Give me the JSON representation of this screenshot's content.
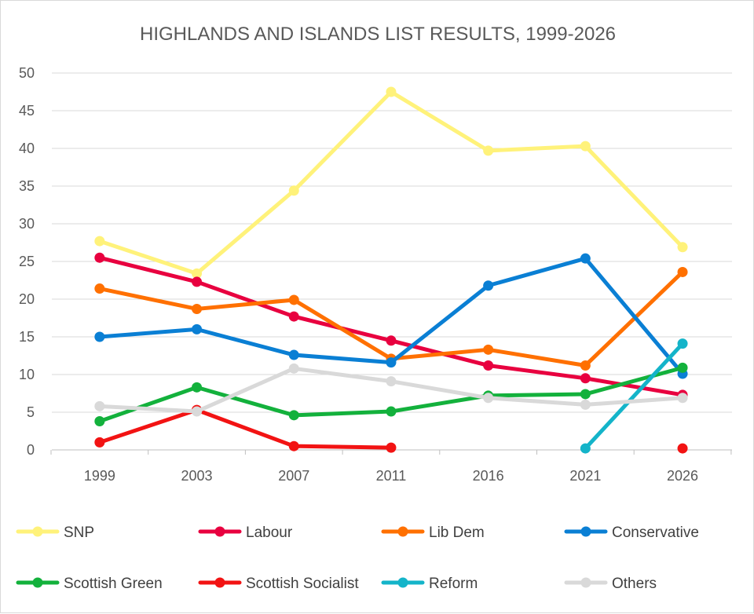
{
  "chart_data": {
    "type": "line",
    "title": "HIGHLANDS AND ISLANDS LIST RESULTS, 1999-2026",
    "xlabel": "",
    "ylabel": "",
    "categories": [
      "1999",
      "2003",
      "2007",
      "2011",
      "2016",
      "2021",
      "2026"
    ],
    "ylim": [
      0,
      50
    ],
    "yticks": [
      0,
      5,
      10,
      15,
      20,
      25,
      30,
      35,
      40,
      45,
      50
    ],
    "grid": true,
    "legend_position": "bottom",
    "series": [
      {
        "name": "SNP",
        "color": "#FFF27A",
        "values": [
          27.7,
          23.4,
          34.4,
          47.5,
          39.7,
          40.3,
          26.9
        ]
      },
      {
        "name": "Labour",
        "color": "#E8003F",
        "values": [
          25.5,
          22.3,
          17.7,
          14.5,
          11.2,
          9.5,
          7.3
        ]
      },
      {
        "name": "Lib Dem",
        "color": "#FF7000",
        "values": [
          21.4,
          18.7,
          19.9,
          12.1,
          13.3,
          11.2,
          23.6
        ]
      },
      {
        "name": "Conservative",
        "color": "#0A7FD4",
        "values": [
          15.0,
          16.0,
          12.6,
          11.6,
          21.8,
          25.4,
          10.1
        ]
      },
      {
        "name": "Scottish Green",
        "color": "#13B13C",
        "values": [
          3.8,
          8.3,
          4.6,
          5.1,
          7.2,
          7.4,
          10.9
        ]
      },
      {
        "name": "Scottish Socialist",
        "color": "#F21313",
        "values": [
          1.0,
          5.3,
          0.5,
          0.3,
          null,
          null,
          0.2
        ]
      },
      {
        "name": "Reform",
        "color": "#14B4C9",
        "values": [
          null,
          null,
          null,
          null,
          null,
          0.2,
          14.1
        ]
      },
      {
        "name": "Others",
        "color": "#D9D9D9",
        "values": [
          5.8,
          5.1,
          10.8,
          9.1,
          6.9,
          6.0,
          6.9
        ]
      }
    ]
  }
}
